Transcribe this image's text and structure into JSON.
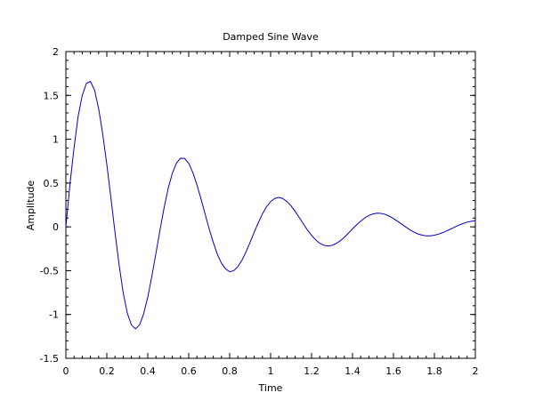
{
  "chart_data": {
    "type": "line",
    "title": "Damped Sine Wave",
    "xlabel": "Time",
    "ylabel": "Amplitude",
    "xlim": [
      0,
      2
    ],
    "ylim": [
      -1.5,
      2
    ],
    "x_ticks": [
      "0",
      "0.2",
      "0.4",
      "0.6",
      "0.8",
      "1",
      "1.2",
      "1.4",
      "1.6",
      "1.8",
      "2"
    ],
    "y_ticks": [
      "-1.5",
      "-1",
      "-0.5",
      "0",
      "0.5",
      "1",
      "1.5",
      "2"
    ],
    "grid": false,
    "series": [
      {
        "color": "#0000cc",
        "x": [
          0,
          0.02,
          0.04,
          0.06,
          0.08,
          0.1,
          0.12,
          0.14,
          0.16,
          0.18,
          0.2,
          0.22,
          0.24,
          0.26,
          0.28,
          0.3,
          0.32,
          0.34,
          0.36,
          0.38,
          0.4,
          0.42,
          0.44,
          0.46,
          0.48,
          0.5,
          0.52,
          0.54,
          0.56,
          0.58,
          0.6,
          0.62,
          0.64,
          0.66,
          0.68,
          0.7,
          0.72,
          0.74,
          0.76,
          0.78,
          0.8,
          0.82,
          0.84,
          0.86,
          0.88,
          0.9,
          0.92,
          0.94,
          0.96,
          0.98,
          1.0,
          1.02,
          1.04,
          1.06,
          1.08,
          1.1,
          1.12,
          1.14,
          1.16,
          1.18,
          1.2,
          1.22,
          1.24,
          1.26,
          1.28,
          1.3,
          1.32,
          1.34,
          1.36,
          1.38,
          1.4,
          1.42,
          1.44,
          1.46,
          1.48,
          1.5,
          1.52,
          1.54,
          1.56,
          1.58,
          1.6,
          1.62,
          1.64,
          1.66,
          1.68,
          1.7,
          1.72,
          1.74,
          1.76,
          1.78,
          1.8,
          1.82,
          1.84,
          1.86,
          1.88,
          1.9,
          1.92,
          1.94,
          1.96,
          1.98,
          2.0
        ],
        "y": [
          0,
          0.487,
          0.904,
          1.263,
          1.5,
          1.637,
          1.66,
          1.561,
          1.351,
          1.06,
          0.713,
          0.331,
          -0.064,
          -0.433,
          -0.752,
          -0.983,
          -1.119,
          -1.164,
          -1.119,
          -0.992,
          -0.803,
          -0.562,
          -0.301,
          -0.033,
          0.221,
          0.442,
          0.611,
          0.727,
          0.783,
          0.781,
          0.725,
          0.621,
          0.48,
          0.319,
          0.146,
          -0.024,
          -0.178,
          -0.314,
          -0.415,
          -0.48,
          -0.512,
          -0.5,
          -0.455,
          -0.38,
          -0.286,
          -0.175,
          -0.061,
          0.047,
          0.148,
          0.229,
          0.288,
          0.324,
          0.336,
          0.322,
          0.289,
          0.239,
          0.176,
          0.107,
          0.034,
          -0.036,
          -0.097,
          -0.148,
          -0.187,
          -0.21,
          -0.218,
          -0.211,
          -0.19,
          -0.159,
          -0.119,
          -0.072,
          -0.023,
          0.023,
          0.065,
          0.102,
          0.13,
          0.147,
          0.156,
          0.153,
          0.142,
          0.122,
          0.095,
          0.064,
          0.031,
          -0.002,
          -0.033,
          -0.06,
          -0.081,
          -0.095,
          -0.102,
          -0.102,
          -0.095,
          -0.083,
          -0.066,
          -0.046,
          -0.024,
          -0.002,
          0.02,
          0.038,
          0.054,
          0.064,
          0.07
        ]
      }
    ]
  }
}
